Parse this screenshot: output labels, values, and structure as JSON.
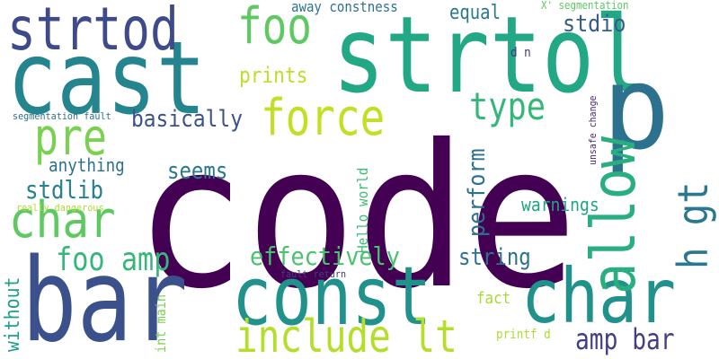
{
  "words": [
    {
      "text": "code",
      "color": "#440154"
    },
    {
      "text": "cast",
      "color": "#25858e"
    },
    {
      "text": "strtol",
      "color": "#22a884"
    },
    {
      "text": "bar",
      "color": "#3b518b"
    },
    {
      "text": "p",
      "color": "#2c728e"
    },
    {
      "text": "char",
      "color": "#21918c"
    },
    {
      "text": "const",
      "color": "#21918c"
    },
    {
      "text": "strtod",
      "color": "#3e4a89"
    },
    {
      "text": "char",
      "color": "#5ec962"
    },
    {
      "text": "include lt",
      "color": "#b5de2b"
    },
    {
      "text": "allow",
      "color": "#29af7f"
    },
    {
      "text": "pre",
      "color": "#7ad151"
    },
    {
      "text": "force",
      "color": "#c2df23"
    },
    {
      "text": "foo",
      "color": "#5ec962"
    },
    {
      "text": "h gt",
      "color": "#2a788e"
    },
    {
      "text": "foo amp",
      "color": "#35b779"
    },
    {
      "text": "type",
      "color": "#35b779"
    },
    {
      "text": "effectively",
      "color": "#4ac16d"
    },
    {
      "text": "amp bar",
      "color": "#433e85"
    },
    {
      "text": "basically",
      "color": "#3b528b"
    },
    {
      "text": "string",
      "color": "#2c728e"
    },
    {
      "text": "stdlib",
      "color": "#26828e"
    },
    {
      "text": "seems",
      "color": "#2a788e"
    },
    {
      "text": "perform",
      "color": "#2c728e"
    },
    {
      "text": "prints",
      "color": "#bddf26"
    },
    {
      "text": "equal",
      "color": "#2a788e"
    },
    {
      "text": "stdio",
      "color": "#365c8d"
    },
    {
      "text": "anything",
      "color": "#2c728e"
    },
    {
      "text": "warnings",
      "color": "#20a486"
    },
    {
      "text": "without",
      "color": "#1f9e89"
    },
    {
      "text": "Hello world",
      "color": "#3dbc74"
    },
    {
      "text": "fact",
      "color": "#a5db36"
    },
    {
      "text": "int main",
      "color": "#7ad151"
    },
    {
      "text": "away constness",
      "color": "#2c728e"
    },
    {
      "text": "d n",
      "color": "#46337f"
    },
    {
      "text": "printf d",
      "color": "#addc30"
    },
    {
      "text": "X' segmentation",
      "color": "#5ec962"
    },
    {
      "text": "unsafe change",
      "color": "#481f70"
    },
    {
      "text": "segmentation fault",
      "color": "#2c728e"
    },
    {
      "text": "really dangerous",
      "color": "#addc30"
    },
    {
      "text": "fault return",
      "color": "#433e85"
    }
  ]
}
